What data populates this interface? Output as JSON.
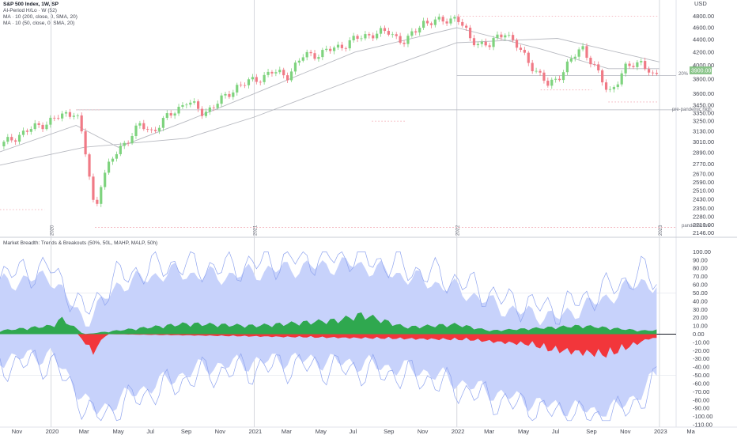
{
  "header": {
    "title": "S&P 500 Index, 1W, SP",
    "legend_lines": [
      "AI-Period H/Lo · W (52)",
      "MA · 10 (200, close, 0, SMA, 20)",
      "MA · 10 (50, close, 0, SMA, 20)"
    ],
    "currency": "USD",
    "price_label": "3900.00"
  },
  "lower_title": "Market Breadth: Trends & Breakouts (50%, 50L, MAHP, MALP, 50h)",
  "annotations": {
    "pct20": "20%",
    "pre_pandemic": "pre-pandemic high",
    "pandemic_low": "pandemic low"
  },
  "year_labels": [
    "2020",
    "2021",
    "2022",
    "2023"
  ],
  "colors": {
    "up": "#7ed37e",
    "down": "#f07a86",
    "band": "#c7d2fb",
    "band_line": "#8fa4ef",
    "pos": "#2fa84f",
    "neg": "#f2363b",
    "ma": "#b7b9c0",
    "guide": "#f2a6b0"
  },
  "chart_data": [
    {
      "type": "candlestick",
      "title": "S&P 500 Index, 1W, SP",
      "ylabel": "USD",
      "log_scale": true,
      "ylim": [
        2130,
        4950
      ],
      "xlim": [
        "2019-10-01",
        "2023-01-31"
      ],
      "yticks": [
        2146,
        2210,
        2280,
        2350,
        2430,
        2510,
        2590,
        2670,
        2770,
        2890,
        3010,
        3130,
        3250,
        3350,
        3450,
        3600,
        3800,
        4000,
        4200,
        4400,
        4600,
        4800
      ],
      "x_ticks": [
        "Nov",
        "2020",
        "Mar",
        "May",
        "Jul",
        "Sep",
        "Nov",
        "2021",
        "Mar",
        "May",
        "Jul",
        "Sep",
        "Nov",
        "2022",
        "Mar",
        "May",
        "Jul",
        "Sep",
        "Nov",
        "2023",
        "Ma"
      ],
      "x_tick_dates": [
        "2019-11-01",
        "2020-01-01",
        "2020-03-01",
        "2020-05-01",
        "2020-07-01",
        "2020-09-01",
        "2020-11-01",
        "2021-01-01",
        "2021-03-01",
        "2021-05-01",
        "2021-07-01",
        "2021-09-01",
        "2021-11-01",
        "2022-01-01",
        "2022-03-01",
        "2022-05-01",
        "2022-07-01",
        "2022-09-01",
        "2022-11-01",
        "2023-01-01",
        "2023-03-01"
      ],
      "series_close_path": [
        [
          "2019-10-01",
          2960
        ],
        [
          "2019-11-01",
          3080
        ],
        [
          "2019-12-01",
          3170
        ],
        [
          "2020-01-01",
          3260
        ],
        [
          "2020-02-15",
          3380
        ],
        [
          "2020-03-01",
          2950
        ],
        [
          "2020-03-20",
          2300
        ],
        [
          "2020-04-01",
          2620
        ],
        [
          "2020-05-01",
          2920
        ],
        [
          "2020-06-10",
          3200
        ],
        [
          "2020-07-01",
          3130
        ],
        [
          "2020-08-15",
          3400
        ],
        [
          "2020-09-01",
          3500
        ],
        [
          "2020-10-01",
          3350
        ],
        [
          "2020-11-01",
          3500
        ],
        [
          "2020-12-01",
          3700
        ],
        [
          "2021-01-01",
          3780
        ],
        [
          "2021-02-01",
          3900
        ],
        [
          "2021-03-01",
          3850
        ],
        [
          "2021-04-01",
          4150
        ],
        [
          "2021-05-01",
          4180
        ],
        [
          "2021-06-01",
          4280
        ],
        [
          "2021-07-01",
          4400
        ],
        [
          "2021-08-01",
          4500
        ],
        [
          "2021-09-01",
          4520
        ],
        [
          "2021-10-01",
          4350
        ],
        [
          "2021-11-01",
          4700
        ],
        [
          "2021-12-01",
          4700
        ],
        [
          "2022-01-01",
          4790
        ],
        [
          "2022-01-25",
          4400
        ],
        [
          "2022-03-01",
          4300
        ],
        [
          "2022-03-28",
          4550
        ],
        [
          "2022-05-01",
          4150
        ],
        [
          "2022-06-15",
          3700
        ],
        [
          "2022-07-01",
          3820
        ],
        [
          "2022-08-15",
          4280
        ],
        [
          "2022-09-01",
          4050
        ],
        [
          "2022-10-01",
          3600
        ],
        [
          "2022-11-01",
          3950
        ],
        [
          "2022-12-01",
          4070
        ],
        [
          "2022-12-20",
          3820
        ],
        [
          "2023-01-01",
          3840
        ]
      ],
      "series": [
        {
          "name": "MA 10 (200, close, 0, SMA, 20)",
          "points": [
            [
              "2019-10-01",
              2760
            ],
            [
              "2020-03-01",
              2950
            ],
            [
              "2020-09-01",
              3050
            ],
            [
              "2021-01-01",
              3300
            ],
            [
              "2021-07-01",
              3800
            ],
            [
              "2022-01-01",
              4350
            ],
            [
              "2022-07-01",
              4420
            ],
            [
              "2023-01-01",
              4050
            ]
          ]
        },
        {
          "name": "MA 10 (50, close, 0, SMA, 20)",
          "points": [
            [
              "2019-10-01",
              2900
            ],
            [
              "2020-02-15",
              3200
            ],
            [
              "2020-05-01",
              2950
            ],
            [
              "2020-09-01",
              3250
            ],
            [
              "2021-01-01",
              3600
            ],
            [
              "2021-07-01",
              4200
            ],
            [
              "2022-01-01",
              4600
            ],
            [
              "2022-06-01",
              4250
            ],
            [
              "2022-10-01",
              3950
            ],
            [
              "2023-01-01",
              3950
            ]
          ]
        }
      ],
      "reference_lines": [
        {
          "label": "pre-pandemic high",
          "value": 3390,
          "from": "2020-02-15"
        },
        {
          "label": "20%",
          "value": 3850,
          "from": "2022-01-01"
        },
        {
          "label": "pandemic low",
          "value": 2191,
          "from": "2020-03-20"
        }
      ]
    },
    {
      "type": "area",
      "title": "Market Breadth: Trends & Breakouts (50%, 50L, MAHP, MALP, 50h)",
      "ylim": [
        -110,
        110
      ],
      "yticks": [
        100,
        90,
        80,
        70,
        60,
        50,
        40,
        30,
        20,
        10,
        0,
        -10,
        -20,
        -30,
        -40,
        -50,
        -60,
        -70,
        -80,
        -90,
        -100,
        -110
      ],
      "series": [
        {
          "name": "upper band",
          "points": [
            [
              "2019-10-01",
              62
            ],
            [
              "2020-01-01",
              70
            ],
            [
              "2020-03-01",
              15
            ],
            [
              "2020-05-01",
              60
            ],
            [
              "2020-08-01",
              75
            ],
            [
              "2020-11-01",
              70
            ],
            [
              "2021-03-01",
              80
            ],
            [
              "2021-07-01",
              85
            ],
            [
              "2021-10-01",
              70
            ],
            [
              "2022-01-01",
              55
            ],
            [
              "2022-04-01",
              30
            ],
            [
              "2022-07-01",
              20
            ],
            [
              "2022-10-01",
              45
            ],
            [
              "2022-12-01",
              65
            ],
            [
              "2023-01-01",
              55
            ]
          ]
        },
        {
          "name": "lower band",
          "points": [
            [
              "2019-10-01",
              -30
            ],
            [
              "2020-01-01",
              -25
            ],
            [
              "2020-03-20",
              -95
            ],
            [
              "2020-06-01",
              -70
            ],
            [
              "2020-10-01",
              -40
            ],
            [
              "2021-03-01",
              -30
            ],
            [
              "2021-07-01",
              -35
            ],
            [
              "2021-11-01",
              -45
            ],
            [
              "2022-03-01",
              -70
            ],
            [
              "2022-06-01",
              -85
            ],
            [
              "2022-10-01",
              -95
            ],
            [
              "2022-12-01",
              -70
            ],
            [
              "2023-01-01",
              -45
            ]
          ]
        },
        {
          "name": "positive",
          "points": [
            [
              "2019-10-01",
              5
            ],
            [
              "2020-01-01",
              12
            ],
            [
              "2020-01-20",
              22
            ],
            [
              "2020-03-01",
              0
            ],
            [
              "2020-06-01",
              8
            ],
            [
              "2020-09-01",
              15
            ],
            [
              "2021-01-01",
              12
            ],
            [
              "2021-06-01",
              20
            ],
            [
              "2021-07-15",
              28
            ],
            [
              "2021-10-01",
              10
            ],
            [
              "2022-01-01",
              14
            ],
            [
              "2022-03-01",
              5
            ],
            [
              "2022-08-15",
              12
            ],
            [
              "2022-12-01",
              5
            ],
            [
              "2023-01-01",
              6
            ]
          ]
        },
        {
          "name": "negative",
          "points": [
            [
              "2020-02-20",
              0
            ],
            [
              "2020-03-15",
              -28
            ],
            [
              "2020-04-10",
              0
            ],
            [
              "2022-01-20",
              -8
            ],
            [
              "2022-05-15",
              -15
            ],
            [
              "2022-06-15",
              -22
            ],
            [
              "2022-10-01",
              -30
            ],
            [
              "2022-12-15",
              -6
            ]
          ]
        }
      ]
    }
  ]
}
